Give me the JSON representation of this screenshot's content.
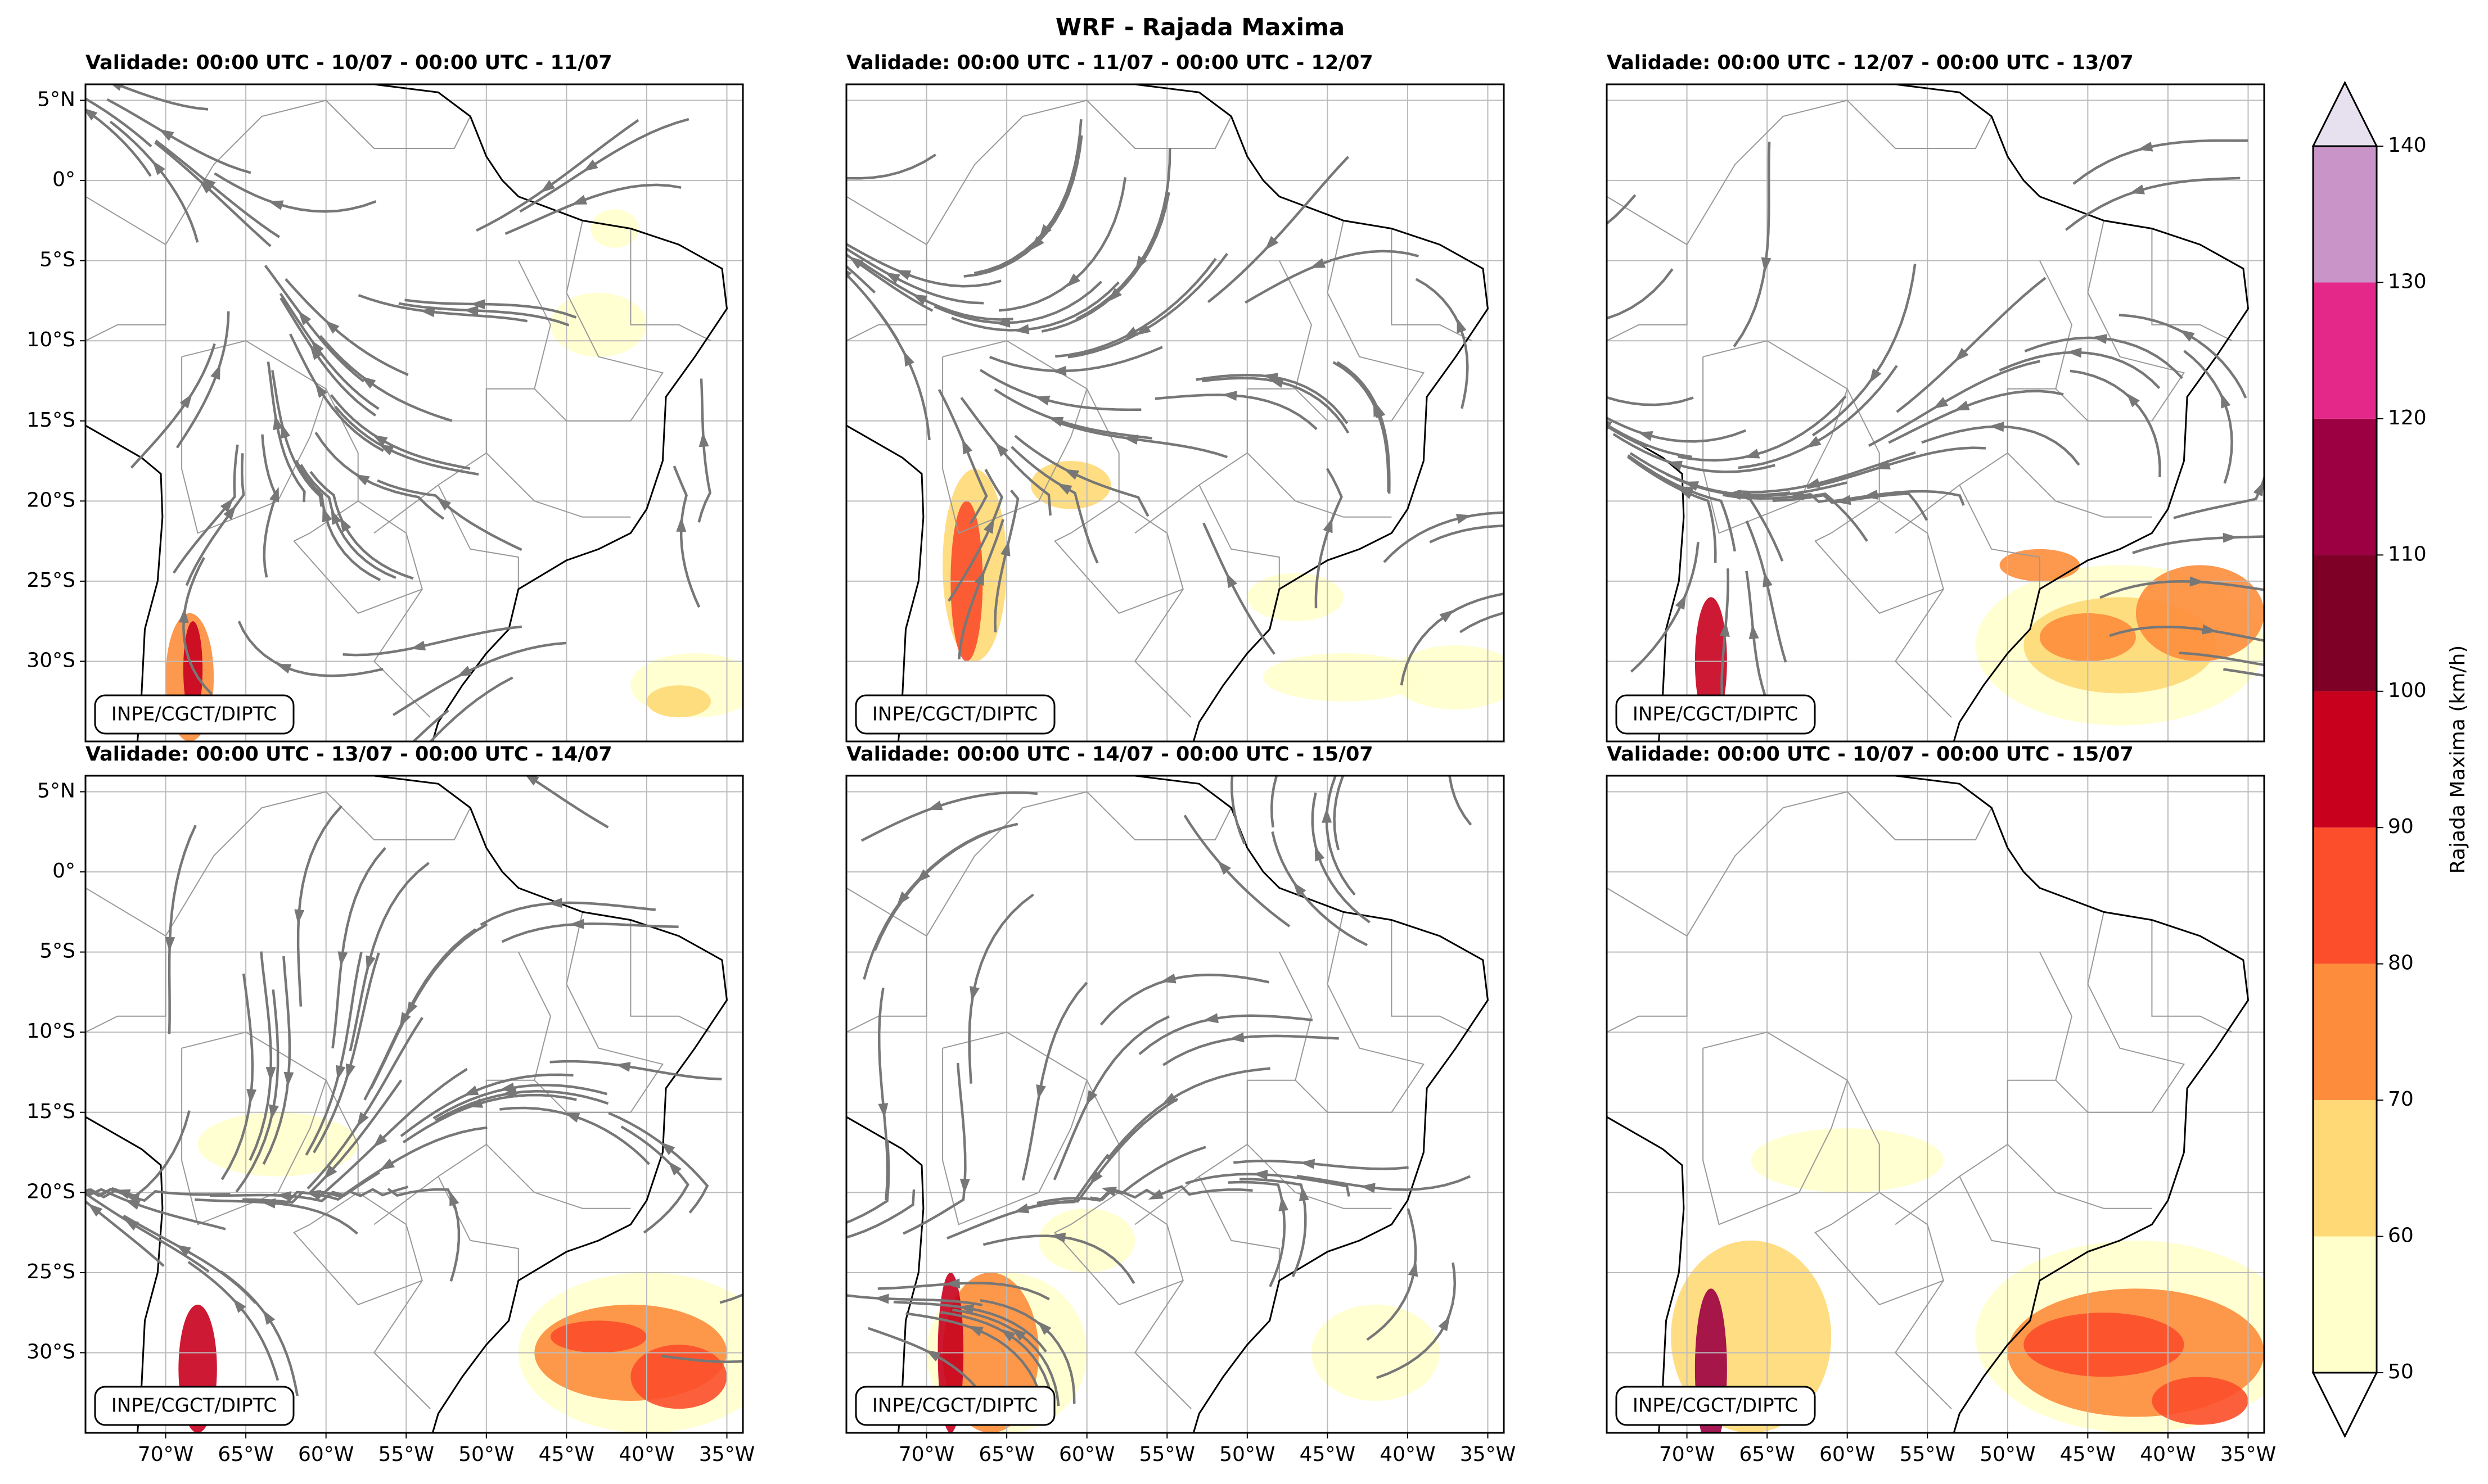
{
  "title": "WRF - Rajada Maxima",
  "panels": [
    {
      "title": "Validade: 00:00 UTC - 10/07 - 00:00 UTC - 11/07",
      "credit": "INPE/CGCT/DIPTC"
    },
    {
      "title": "Validade: 00:00 UTC - 11/07 - 00:00 UTC - 12/07",
      "credit": "INPE/CGCT/DIPTC"
    },
    {
      "title": "Validade: 00:00 UTC - 12/07 - 00:00 UTC - 13/07",
      "credit": "INPE/CGCT/DIPTC"
    },
    {
      "title": "Validade: 00:00 UTC - 13/07 - 00:00 UTC - 14/07",
      "credit": "INPE/CGCT/DIPTC"
    },
    {
      "title": "Validade: 00:00 UTC - 14/07 - 00:00 UTC - 15/07",
      "credit": "INPE/CGCT/DIPTC"
    },
    {
      "title": "Validade: 00:00 UTC - 10/07 - 00:00 UTC - 15/07",
      "credit": "INPE/CGCT/DIPTC"
    }
  ],
  "lon_lim": [
    -75,
    -34
  ],
  "lat_lim": [
    -35,
    6
  ],
  "lon_ticks": [
    {
      "value": -70,
      "label": "70°W"
    },
    {
      "value": -65,
      "label": "65°W"
    },
    {
      "value": -60,
      "label": "60°W"
    },
    {
      "value": -55,
      "label": "55°W"
    },
    {
      "value": -50,
      "label": "50°W"
    },
    {
      "value": -45,
      "label": "45°W"
    },
    {
      "value": -40,
      "label": "40°W"
    },
    {
      "value": -35,
      "label": "35°W"
    }
  ],
  "lat_ticks": [
    {
      "value": 5,
      "label": "5°N"
    },
    {
      "value": 0,
      "label": "0°"
    },
    {
      "value": -5,
      "label": "5°S"
    },
    {
      "value": -10,
      "label": "10°S"
    },
    {
      "value": -15,
      "label": "15°S"
    },
    {
      "value": -20,
      "label": "20°S"
    },
    {
      "value": -25,
      "label": "25°S"
    },
    {
      "value": -30,
      "label": "30°S"
    }
  ],
  "colorbar": {
    "label": "Rajada Maxima (km/h)",
    "ticks": [
      50,
      60,
      70,
      80,
      90,
      100,
      110,
      120,
      130,
      140
    ],
    "colors": [
      "#ffffcc",
      "#fed976",
      "#fd8d3c",
      "#fc4e2a",
      "#c8001e",
      "#7f0026",
      "#9c0042",
      "#e4288a",
      "#c994c7"
    ],
    "over_color": "#e6e0ef",
    "under_color": "#ffffff"
  }
}
